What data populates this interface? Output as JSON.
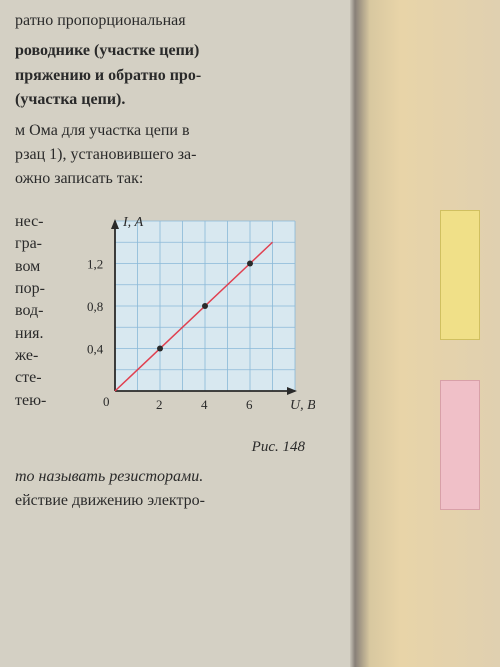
{
  "text": {
    "line1": "ратно пропорциональная",
    "line2": "роводнике (участке цепи)",
    "line3": "пряжению и обратно про-",
    "line4": "(участка цепи).",
    "line5": "м Ома для участка цепи в",
    "line6": "рзац 1), установившего за-",
    "line7": "ожно записать так:",
    "left1": "нес-",
    "left2": "гра-",
    "left3": "вом",
    "left4": "пор-",
    "left5": "вод-",
    "left6": "ния.",
    "left7": "же-",
    "left8": "сте-",
    "left9": "тею-",
    "bottom1": "то называть резисторами.",
    "bottom2": "ействие движению электро-"
  },
  "chart": {
    "type": "line",
    "ylabel": "I, А",
    "xlabel": "U, В",
    "ylabel_fontsize": 14,
    "xlabel_fontsize": 14,
    "grid_color": "#8ab8d8",
    "background_color": "#d8e8f0",
    "line_color": "#e04050",
    "point_color": "#2a2a2a",
    "axis_color": "#2a2a2a",
    "xlim": [
      0,
      8
    ],
    "ylim": [
      0,
      1.6
    ],
    "xticks": [
      2,
      4,
      6
    ],
    "yticks": [
      0.4,
      0.8,
      1.2
    ],
    "ytick_labels": [
      "0,4",
      "0,8",
      "1,2"
    ],
    "xtick_labels": [
      "2",
      "4",
      "6"
    ],
    "origin_label": "0",
    "data_points": [
      {
        "x": 2,
        "y": 0.4
      },
      {
        "x": 4,
        "y": 0.8
      },
      {
        "x": 6,
        "y": 1.2
      }
    ],
    "line_start": {
      "x": 0,
      "y": 0
    },
    "line_end": {
      "x": 7,
      "y": 1.4
    },
    "grid_cell_size": 1,
    "line_width": 1.5,
    "point_radius": 3
  },
  "caption": "Рис. 148"
}
